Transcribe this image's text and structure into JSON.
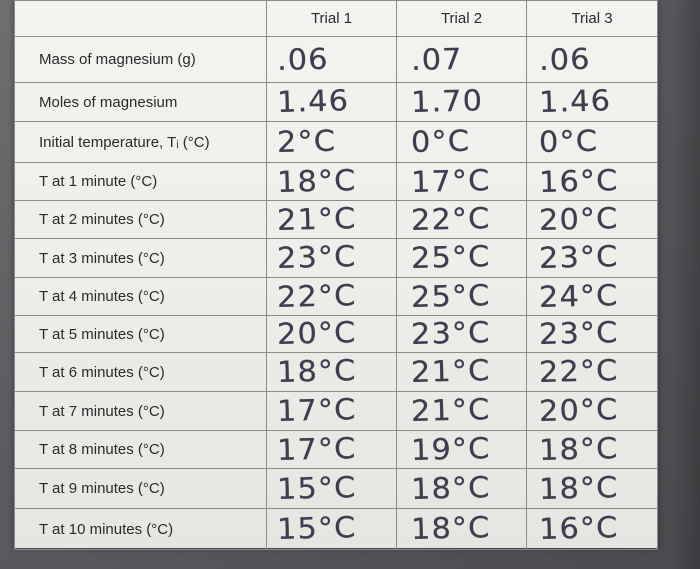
{
  "headers": [
    "",
    "Trial 1",
    "Trial 2",
    "Trial 3"
  ],
  "rows": [
    {
      "label": "Mass of magnesium (g)",
      "values": [
        ".06",
        ".07",
        ".06"
      ]
    },
    {
      "label": "Moles of magnesium",
      "values": [
        "1.46",
        "1.70",
        "1.46"
      ]
    },
    {
      "label": "Initial temperature, Tᵢ (°C)",
      "values": [
        "2°C",
        "0°C",
        "0°C"
      ]
    },
    {
      "label": "T at 1 minute (°C)",
      "values": [
        "18°C",
        "17°C",
        "16°C"
      ]
    },
    {
      "label": "T at 2 minutes (°C)",
      "values": [
        "21°C",
        "22°C",
        "20°C"
      ]
    },
    {
      "label": "T at 3 minutes (°C)",
      "values": [
        "23°C",
        "25°C",
        "23°C"
      ]
    },
    {
      "label": "T at 4 minutes (°C)",
      "values": [
        "22°C",
        "25°C",
        "24°C"
      ]
    },
    {
      "label": "T at 5 minutes (°C)",
      "values": [
        "20°C",
        "23°C",
        "23°C"
      ]
    },
    {
      "label": "T at 6 minutes (°C)",
      "values": [
        "18°C",
        "21°C",
        "22°C"
      ]
    },
    {
      "label": "T at 7 minutes (°C)",
      "values": [
        "17°C",
        "21°C",
        "20°C"
      ]
    },
    {
      "label": "T at 8 minutes (°C)",
      "values": [
        "17°C",
        "19°C",
        "18°C"
      ]
    },
    {
      "label": "T at 9 minutes (°C)",
      "values": [
        "15°C",
        "18°C",
        "18°C"
      ]
    },
    {
      "label": "T at 10 minutes (°C)",
      "values": [
        "15°C",
        "18°C",
        "16°C"
      ]
    }
  ],
  "colors": {
    "paper": "#efeeea",
    "grid": "#8c8c8a",
    "ink": "#3d3e4e",
    "background": "#5c5c60"
  }
}
